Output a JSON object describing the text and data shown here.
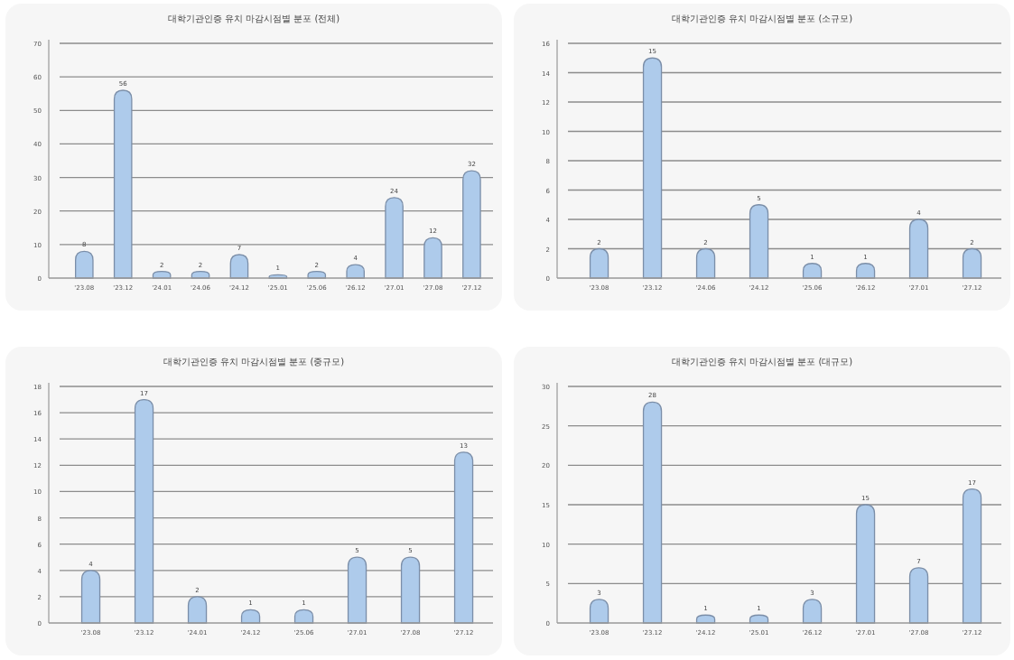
{
  "chart_data": [
    {
      "type": "bar",
      "title": "대학기관인증 유치 마감시점별 분포 (전체)",
      "categories": [
        "'23.08",
        "'23.12",
        "'24.01",
        "'24.06",
        "'24.12",
        "'25.01",
        "'25.06",
        "'26.12",
        "'27.01",
        "'27.08",
        "'27.12"
      ],
      "values": [
        8,
        56,
        2,
        2,
        7,
        1,
        2,
        4,
        24,
        12,
        32
      ],
      "color": "#aecbeb",
      "ylim": [
        0,
        70
      ],
      "yticks": [
        0,
        10,
        20,
        30,
        40,
        50,
        60,
        70
      ],
      "grid": "y",
      "data_labels": true
    },
    {
      "type": "bar",
      "title": "대학기관인증 유치 마감시점별 분포 (소규모)",
      "categories": [
        "'23.08",
        "'23.12",
        "'24.06",
        "'24.12",
        "'25.06",
        "'26.12",
        "'27.01",
        "'27.12"
      ],
      "values": [
        2,
        15,
        2,
        5,
        1,
        1,
        4,
        2
      ],
      "color": "#aecbeb",
      "ylim": [
        0,
        16
      ],
      "yticks": [
        0,
        2,
        4,
        6,
        8,
        10,
        12,
        14,
        16
      ],
      "grid": "y",
      "data_labels": true
    },
    {
      "type": "bar",
      "title": "대학기관인증 유치 마감시점별 분포 (중규모)",
      "categories": [
        "'23.08",
        "'23.12",
        "'24.01",
        "'24.12",
        "'25.06",
        "'27.01",
        "'27.08",
        "'27.12"
      ],
      "values": [
        4,
        17,
        2,
        1,
        1,
        5,
        5,
        13
      ],
      "color": "#aecbeb",
      "ylim": [
        0,
        18
      ],
      "yticks": [
        0,
        2,
        4,
        6,
        8,
        10,
        12,
        14,
        16,
        18
      ],
      "grid": "y",
      "data_labels": true
    },
    {
      "type": "bar",
      "title": "대학기관인증 유치 마감시점별 분포 (대규모)",
      "categories": [
        "'23.08",
        "'23.12",
        "'24.12",
        "'25.01",
        "'26.12",
        "'27.01",
        "'27.08",
        "'27.12"
      ],
      "values": [
        3,
        28,
        1,
        1,
        3,
        15,
        7,
        17
      ],
      "color": "#aecbeb",
      "ylim": [
        0,
        30
      ],
      "yticks": [
        0,
        5,
        10,
        15,
        20,
        25,
        30
      ],
      "grid": "y",
      "data_labels": true
    }
  ]
}
